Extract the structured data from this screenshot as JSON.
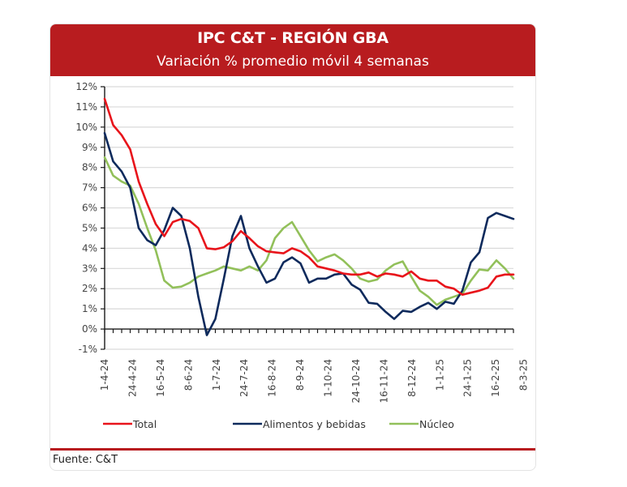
{
  "header": {
    "title": "IPC C&T - REGIÓN GBA",
    "subtitle": "Variación % promedio móvil 4 semanas"
  },
  "footer": {
    "source": "Fuente: C&T"
  },
  "colors": {
    "header_bg": "#b81c1f",
    "total": "#e8141b",
    "alimentos": "#0e2a5c",
    "nucleo": "#92c05a",
    "grid": "#d9d9d9",
    "axis": "#1a1a1a"
  },
  "chart_data": {
    "type": "line",
    "title": "IPC C&T - REGIÓN GBA",
    "subtitle": "Variación % promedio móvil 4 semanas",
    "xlabel": "",
    "ylabel": "",
    "ylim": [
      -1,
      12
    ],
    "y_ticks": [
      -1,
      0,
      1,
      2,
      3,
      4,
      5,
      6,
      7,
      8,
      9,
      10,
      11,
      12
    ],
    "y_tick_labels": [
      "-1%",
      "0%",
      "1%",
      "2%",
      "3%",
      "4%",
      "5%",
      "6%",
      "7%",
      "8%",
      "9%",
      "10%",
      "11%",
      "12%"
    ],
    "x_tick_labels": [
      "1-4-24",
      "24-4-24",
      "16-5-24",
      "8-6-24",
      "1-7-24",
      "24-7-24",
      "16-8-24",
      "8-9-24",
      "1-10-24",
      "24-10-24",
      "16-11-24",
      "8-12-24",
      "1-1-25",
      "24-1-25",
      "16-2-25",
      "8-3-25"
    ],
    "x_label_step_points": 3.28,
    "n_points": 49,
    "grid": true,
    "legend_position": "bottom",
    "series": [
      {
        "name": "Total",
        "color": "#e8141b",
        "values": [
          11.4,
          10.1,
          9.6,
          8.9,
          7.3,
          6.2,
          5.2,
          4.6,
          5.3,
          5.45,
          5.35,
          5.0,
          4.0,
          3.95,
          4.05,
          4.35,
          4.85,
          4.5,
          4.1,
          3.85,
          3.8,
          3.75,
          4.0,
          3.85,
          3.55,
          3.1,
          3.0,
          2.9,
          2.75,
          2.7,
          2.7,
          2.8,
          2.6,
          2.75,
          2.7,
          2.6,
          2.85,
          2.5,
          2.4,
          2.4,
          2.1,
          2.0,
          1.7,
          1.8,
          1.9,
          2.05,
          2.6,
          2.7,
          2.7
        ]
      },
      {
        "name": "Alimentos y bebidas",
        "color": "#0e2a5c",
        "values": [
          9.7,
          8.3,
          7.8,
          7.0,
          5.0,
          4.4,
          4.15,
          4.9,
          6.0,
          5.6,
          4.0,
          1.6,
          -0.3,
          0.5,
          2.5,
          4.6,
          5.6,
          4.0,
          3.1,
          2.3,
          2.5,
          3.3,
          3.55,
          3.25,
          2.3,
          2.5,
          2.5,
          2.7,
          2.75,
          2.2,
          1.95,
          1.3,
          1.25,
          0.85,
          0.5,
          0.9,
          0.85,
          1.1,
          1.3,
          1.0,
          1.35,
          1.25,
          1.9,
          3.3,
          3.8,
          5.5,
          5.75,
          5.6,
          5.45
        ]
      },
      {
        "name": "Núcleo",
        "color": "#92c05a",
        "values": [
          8.5,
          7.6,
          7.3,
          7.1,
          6.2,
          5.0,
          3.9,
          2.4,
          2.05,
          2.1,
          2.3,
          2.6,
          2.75,
          2.9,
          3.1,
          3.0,
          2.9,
          3.1,
          2.9,
          3.4,
          4.5,
          5.0,
          5.3,
          4.6,
          3.9,
          3.35,
          3.55,
          3.7,
          3.4,
          3.0,
          2.5,
          2.35,
          2.45,
          2.9,
          3.2,
          3.35,
          2.6,
          1.9,
          1.6,
          1.2,
          1.45,
          1.6,
          1.75,
          2.4,
          2.95,
          2.9,
          3.4,
          3.0,
          2.5
        ]
      }
    ]
  }
}
